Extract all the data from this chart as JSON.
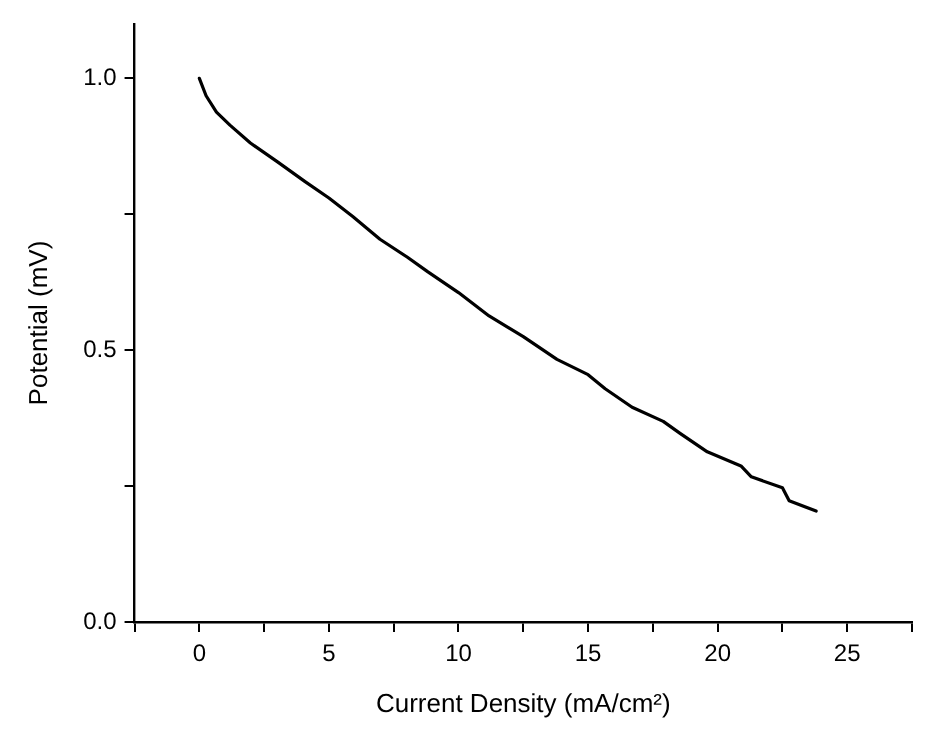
{
  "chart_data": {
    "type": "line",
    "xlabel": "Current Density (mA/cm²)",
    "ylabel": "Potential (mV)",
    "x": [
      0,
      0.26,
      0.66,
      1.18,
      1.97,
      3.03,
      4.08,
      5,
      5.92,
      6.97,
      8.03,
      8.82,
      10,
      11.18,
      12.5,
      13.8,
      15,
      15.66,
      16.7,
      17.9,
      18.55,
      19.6,
      20.9,
      21.3,
      22.5,
      22.76,
      23.8
    ],
    "series": [
      {
        "color": "#000000",
        "values": [
          1.0,
          0.968,
          0.938,
          0.914,
          0.881,
          0.846,
          0.81,
          0.78,
          0.746,
          0.704,
          0.671,
          0.644,
          0.606,
          0.563,
          0.525,
          0.483,
          0.455,
          0.429,
          0.395,
          0.369,
          0.347,
          0.313,
          0.287,
          0.267,
          0.247,
          0.223,
          0.204
        ]
      }
    ],
    "xlim": [
      -2.5,
      27.5
    ],
    "ylim": [
      0,
      1.1
    ],
    "xticks": [
      {
        "value": -2.5,
        "label": null
      },
      0,
      {
        "value": 2.5,
        "label": null
      },
      5,
      {
        "value": 7.5,
        "label": null
      },
      10,
      {
        "value": 12.5,
        "label": null
      },
      15,
      {
        "value": 17.5,
        "label": null
      },
      20,
      {
        "value": 22.5,
        "label": null
      },
      25,
      {
        "value": 27.5,
        "label": null
      }
    ],
    "yticks": [
      {
        "value": 0,
        "label": "0.0"
      },
      {
        "value": 0.25,
        "label": null
      },
      0.5,
      {
        "value": 0.75,
        "label": null
      },
      {
        "value": 1,
        "label": "1.0"
      }
    ],
    "grid": false,
    "legend": false,
    "marker": "none",
    "line_style": "solid"
  }
}
